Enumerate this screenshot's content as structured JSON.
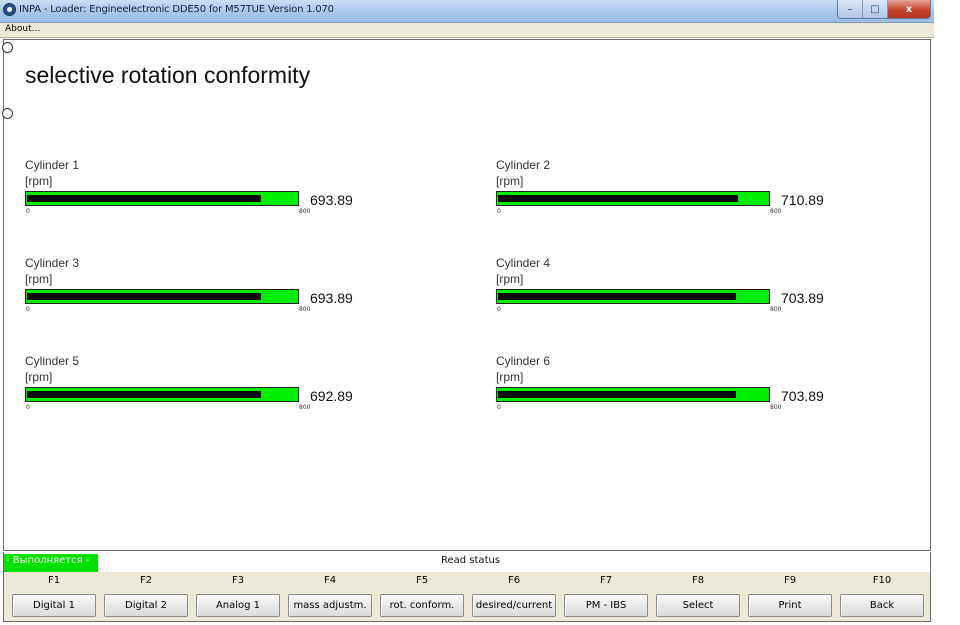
{
  "window": {
    "title": "INPA - Loader:  Engineelectronic DDE50 for M57TUE Version 1.070",
    "caption_buttons": {
      "minimize": "–",
      "maximize": "□",
      "close": "x"
    }
  },
  "menu": {
    "about": "About..."
  },
  "page": {
    "title": "selective rotation conformity"
  },
  "gauges": [
    {
      "label": "Cylinder 1",
      "unit": "[rpm]",
      "value": "693.89",
      "min": "0",
      "max": "800",
      "level_fraction": 0.868
    },
    {
      "label": "Cylinder 2",
      "unit": "[rpm]",
      "value": "710.89",
      "min": "0",
      "max": "800",
      "level_fraction": 0.889
    },
    {
      "label": "Cylinder 3",
      "unit": "[rpm]",
      "value": "693.89",
      "min": "0",
      "max": "800",
      "level_fraction": 0.868
    },
    {
      "label": "Cylinder 4",
      "unit": "[rpm]",
      "value": "703.89",
      "min": "0",
      "max": "800",
      "level_fraction": 0.88
    },
    {
      "label": "Cylinder 5",
      "unit": "[rpm]",
      "value": "692.89",
      "min": "0",
      "max": "800",
      "level_fraction": 0.866
    },
    {
      "label": "Cylinder 6",
      "unit": "[rpm]",
      "value": "703.89",
      "min": "0",
      "max": "800",
      "level_fraction": 0.88
    }
  ],
  "status": {
    "running": "- Выполняется -",
    "text": "Read status"
  },
  "fkeys": [
    {
      "key": "F1",
      "label": "Digital 1"
    },
    {
      "key": "F2",
      "label": "Digital 2"
    },
    {
      "key": "F3",
      "label": "Analog 1"
    },
    {
      "key": "F4",
      "label": "mass adjustm."
    },
    {
      "key": "F5",
      "label": "rot. conform."
    },
    {
      "key": "F6",
      "label": "desired/current"
    },
    {
      "key": "F7",
      "label": "PM - IBS"
    },
    {
      "key": "F8",
      "label": "Select"
    },
    {
      "key": "F9",
      "label": "Print"
    },
    {
      "key": "F10",
      "label": "Back"
    }
  ],
  "colors": {
    "bar_green": "#00ee00",
    "bar_fill": "#0a0a0a",
    "status_green": "#00e100"
  }
}
